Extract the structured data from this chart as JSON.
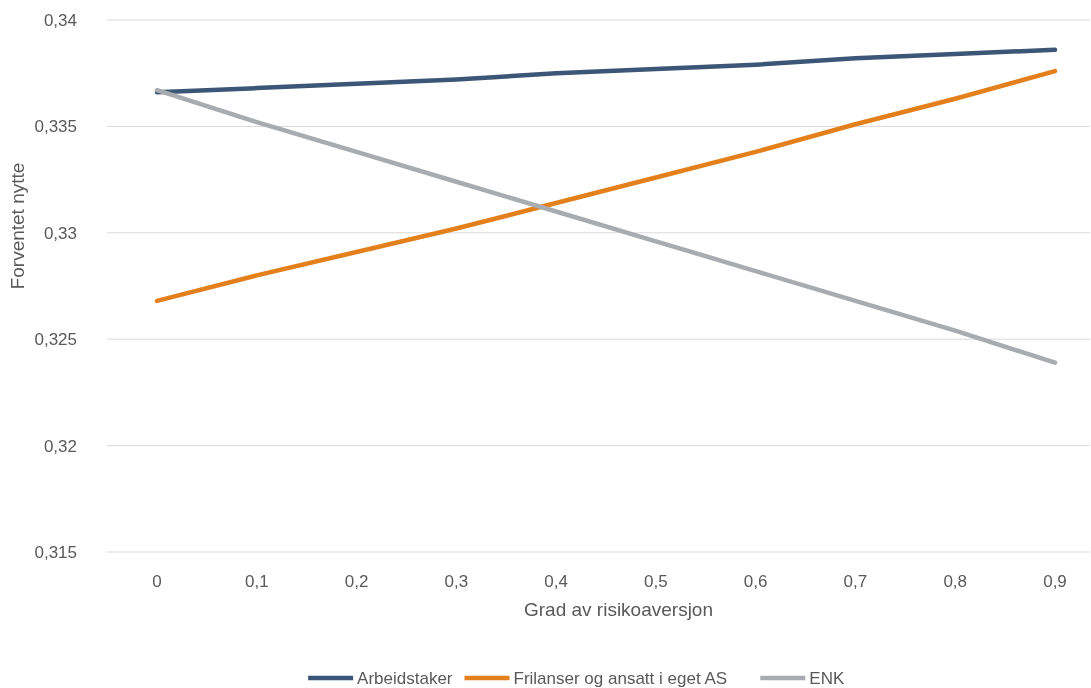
{
  "chart_data": {
    "type": "line",
    "xlabel": "Grad av risikoaversjon",
    "ylabel": "Forventet nytte",
    "categories": [
      "0",
      "0,1",
      "0,2",
      "0,3",
      "0,4",
      "0,5",
      "0,6",
      "0,7",
      "0,8",
      "0,9"
    ],
    "series": [
      {
        "name": "Arbeidstaker",
        "color": "#3b5676",
        "values": [
          0.3366,
          0.3368,
          0.337,
          0.3372,
          0.3375,
          0.3377,
          0.3379,
          0.3382,
          0.3384,
          0.3386
        ]
      },
      {
        "name": "Frilanser og ansatt i eget AS",
        "color": "#e3801c",
        "values": [
          0.3268,
          0.328,
          0.3291,
          0.3302,
          0.3314,
          0.3326,
          0.3338,
          0.3351,
          0.3363,
          0.3376
        ]
      },
      {
        "name": "ENK",
        "color": "#a8abaf",
        "values": [
          0.3367,
          0.3352,
          0.3338,
          0.3324,
          0.331,
          0.3296,
          0.3282,
          0.3268,
          0.3254,
          0.3239
        ]
      }
    ],
    "ylim": [
      0.315,
      0.34
    ],
    "yticks": [
      {
        "value": 0.315,
        "label": "0,315"
      },
      {
        "value": 0.32,
        "label": "0,32"
      },
      {
        "value": 0.325,
        "label": "0,325"
      },
      {
        "value": 0.33,
        "label": "0,33"
      },
      {
        "value": 0.335,
        "label": "0,335"
      },
      {
        "value": 0.34,
        "label": "0,34"
      }
    ],
    "grid": "y",
    "legend": "bottom",
    "line_style": "solid"
  }
}
